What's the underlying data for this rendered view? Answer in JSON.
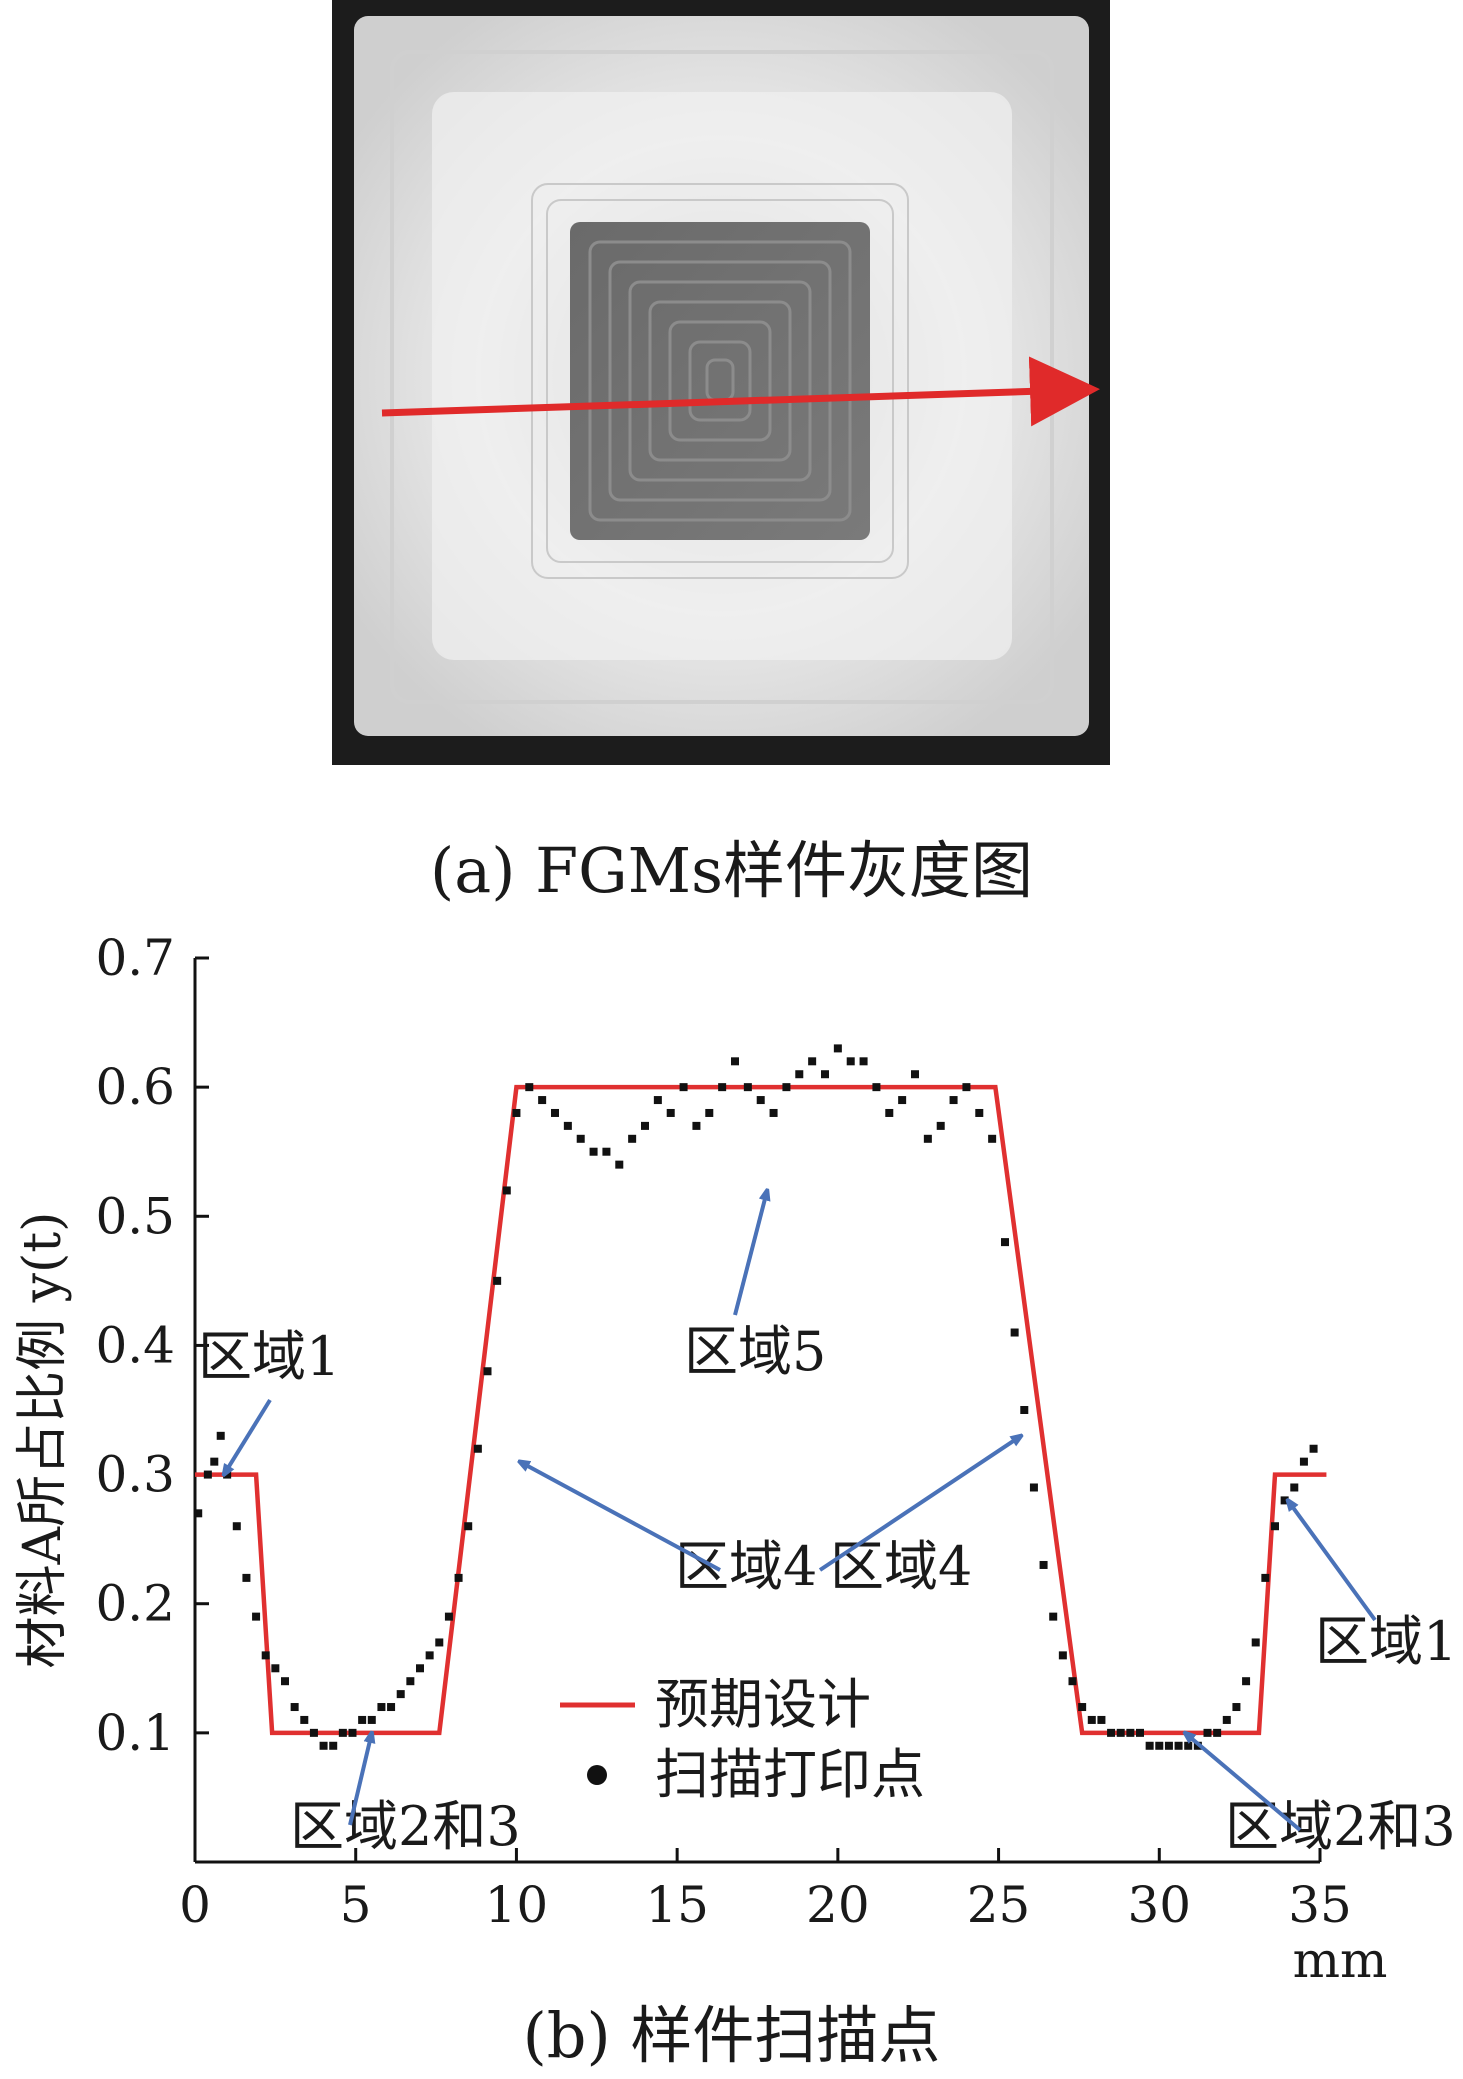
{
  "figure_a": {
    "caption": "(a) FGMs样件灰度图"
  },
  "figure_b": {
    "caption": "(b) 样件扫描点"
  },
  "colors": {
    "design_line": "#e03030",
    "scan_points": "#111111",
    "annotation_arrow": "#4a72b8",
    "scan_arrow": "#e02a2a"
  },
  "chart_data": {
    "type": "line",
    "title": "",
    "xlabel": "mm",
    "ylabel": "材料A所占比例 y(t)",
    "xlim": [
      0,
      35
    ],
    "ylim": [
      0,
      0.7
    ],
    "x_ticks": [
      0,
      5,
      10,
      15,
      20,
      25,
      30,
      35
    ],
    "y_ticks": [
      0.1,
      0.2,
      0.3,
      0.4,
      0.5,
      0.6,
      0.7
    ],
    "x_tick_labels": [
      "0",
      "5",
      "10",
      "15",
      "20",
      "25",
      "30",
      "35"
    ],
    "y_tick_labels": [
      "0.1",
      "0.2",
      "0.3",
      "0.4",
      "0.5",
      "0.6",
      "0.7"
    ],
    "grid": false,
    "legend_position": "bottom-center",
    "series": [
      {
        "name": "预期设计",
        "kind": "line",
        "x": [
          0,
          1.9,
          2.4,
          7.6,
          10.0,
          24.9,
          27.6,
          33.1,
          33.6,
          35.2
        ],
        "y": [
          0.3,
          0.3,
          0.1,
          0.1,
          0.6,
          0.6,
          0.1,
          0.1,
          0.3,
          0.3
        ]
      },
      {
        "name": "扫描打印点",
        "kind": "scatter",
        "x": [
          0.1,
          0.4,
          0.6,
          0.8,
          1.0,
          1.3,
          1.6,
          1.9,
          2.2,
          2.5,
          2.8,
          3.1,
          3.4,
          3.7,
          4.0,
          4.3,
          4.6,
          4.9,
          5.2,
          5.5,
          5.8,
          6.1,
          6.4,
          6.7,
          7.0,
          7.3,
          7.6,
          7.9,
          8.2,
          8.5,
          8.8,
          9.1,
          9.4,
          9.7,
          10.0,
          10.4,
          10.8,
          11.2,
          11.6,
          12.0,
          12.4,
          12.8,
          13.2,
          13.6,
          14.0,
          14.4,
          14.8,
          15.2,
          15.6,
          16.0,
          16.4,
          16.8,
          17.2,
          17.6,
          18.0,
          18.4,
          18.8,
          19.2,
          19.6,
          20.0,
          20.4,
          20.8,
          21.2,
          21.6,
          22.0,
          22.4,
          22.8,
          23.2,
          23.6,
          24.0,
          24.4,
          24.8,
          25.2,
          25.5,
          25.8,
          26.1,
          26.4,
          26.7,
          27.0,
          27.3,
          27.6,
          27.9,
          28.2,
          28.5,
          28.8,
          29.1,
          29.4,
          29.7,
          30.0,
          30.3,
          30.6,
          30.9,
          31.2,
          31.5,
          31.8,
          32.1,
          32.4,
          32.7,
          33.0,
          33.3,
          33.6,
          33.9,
          34.2,
          34.5,
          34.8
        ],
        "y": [
          0.27,
          0.3,
          0.31,
          0.33,
          0.3,
          0.26,
          0.22,
          0.19,
          0.16,
          0.15,
          0.14,
          0.12,
          0.11,
          0.1,
          0.09,
          0.09,
          0.1,
          0.1,
          0.11,
          0.11,
          0.12,
          0.12,
          0.13,
          0.14,
          0.15,
          0.16,
          0.17,
          0.19,
          0.22,
          0.26,
          0.32,
          0.38,
          0.45,
          0.52,
          0.58,
          0.6,
          0.59,
          0.58,
          0.57,
          0.56,
          0.55,
          0.55,
          0.54,
          0.56,
          0.57,
          0.59,
          0.58,
          0.6,
          0.57,
          0.58,
          0.6,
          0.62,
          0.6,
          0.59,
          0.58,
          0.6,
          0.61,
          0.62,
          0.61,
          0.63,
          0.62,
          0.62,
          0.6,
          0.58,
          0.59,
          0.61,
          0.56,
          0.57,
          0.59,
          0.6,
          0.58,
          0.56,
          0.48,
          0.41,
          0.35,
          0.29,
          0.23,
          0.19,
          0.16,
          0.14,
          0.12,
          0.11,
          0.11,
          0.1,
          0.1,
          0.1,
          0.1,
          0.09,
          0.09,
          0.09,
          0.09,
          0.09,
          0.09,
          0.1,
          0.1,
          0.11,
          0.12,
          0.14,
          0.17,
          0.22,
          0.26,
          0.28,
          0.29,
          0.31,
          0.32
        ]
      }
    ],
    "annotations": [
      {
        "text": "区域1",
        "target_x": 0.9,
        "target_y": 0.3
      },
      {
        "text": "区域2和3",
        "target_x": 5.5,
        "target_y": 0.1
      },
      {
        "text": "区域4",
        "target_x": 10.1,
        "target_y": 0.31
      },
      {
        "text": "区域4",
        "target_x": 25.7,
        "target_y": 0.33
      },
      {
        "text": "区域5",
        "target_x": 17.8,
        "target_y": 0.52
      },
      {
        "text": "区域1",
        "target_x": 34.0,
        "target_y": 0.28
      },
      {
        "text": "区域2和3",
        "target_x": 30.8,
        "target_y": 0.1
      }
    ]
  }
}
